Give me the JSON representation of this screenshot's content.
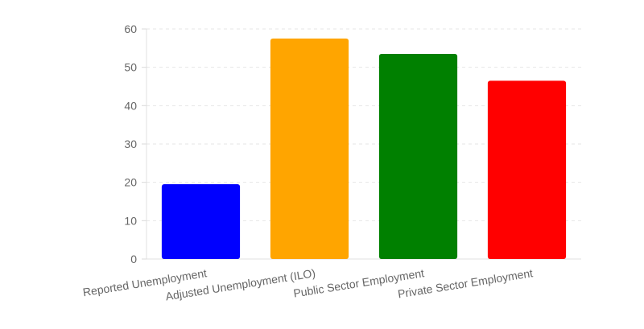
{
  "chart_data": {
    "type": "bar",
    "title": "",
    "xlabel": "",
    "ylabel": "",
    "categories": [
      "Reported Unemployment",
      "Adjusted Unemployment (ILO)",
      "Public Sector Employment",
      "Private Sector Employment"
    ],
    "values": [
      19.5,
      57.5,
      53.5,
      46.5
    ],
    "colors": [
      "#0000ff",
      "#ffa500",
      "#008000",
      "#ff0000"
    ],
    "ylim": [
      0,
      60
    ],
    "yticks": [
      0,
      10,
      20,
      30,
      40,
      50,
      60
    ],
    "grid": true,
    "legend": "none"
  }
}
